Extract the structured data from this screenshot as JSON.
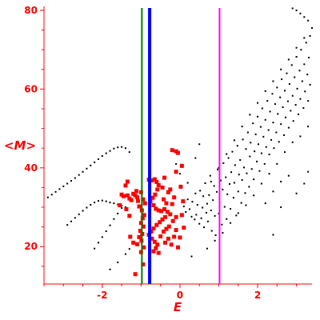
{
  "chart_data": {
    "type": "scatter",
    "xlabel": "E",
    "ylabel": "<M>",
    "xlim": [
      -3.5,
      3.4
    ],
    "ylim": [
      10.5,
      81
    ],
    "xticks": [
      -2,
      0,
      2
    ],
    "yticks": [
      20,
      40,
      60,
      80
    ],
    "vertical_lines": [
      {
        "x": -0.98,
        "color": "#008000"
      },
      {
        "x": -0.78,
        "color": "#0000ff"
      },
      {
        "x": 1.02,
        "color": "#ff00ff"
      }
    ],
    "series": [
      {
        "color": "#000000",
        "marker": "dot",
        "points": [
          [
            -3.4,
            32.5
          ],
          [
            -3.3,
            33.2
          ],
          [
            -3.2,
            33.9
          ],
          [
            -3.1,
            34.6
          ],
          [
            -3.0,
            35.3
          ],
          [
            -2.9,
            36.0
          ],
          [
            -2.8,
            36.7
          ],
          [
            -2.7,
            37.4
          ],
          [
            -2.6,
            38.2
          ],
          [
            -2.5,
            39.0
          ],
          [
            -2.4,
            39.8
          ],
          [
            -2.3,
            40.6
          ],
          [
            -2.2,
            41.4
          ],
          [
            -2.1,
            42.2
          ],
          [
            -2.0,
            43.0
          ],
          [
            -1.9,
            43.7
          ],
          [
            -1.8,
            44.3
          ],
          [
            -1.7,
            44.9
          ],
          [
            -1.6,
            45.2
          ],
          [
            -1.5,
            45.3
          ],
          [
            -1.4,
            45.0
          ],
          [
            -1.3,
            44.0
          ],
          [
            -2.9,
            25.5
          ],
          [
            -2.8,
            26.4
          ],
          [
            -2.7,
            27.3
          ],
          [
            -2.6,
            28.2
          ],
          [
            -2.5,
            29.1
          ],
          [
            -2.4,
            29.9
          ],
          [
            -2.3,
            30.6
          ],
          [
            -2.2,
            31.2
          ],
          [
            -2.1,
            31.6
          ],
          [
            -2.0,
            31.7
          ],
          [
            -1.9,
            31.5
          ],
          [
            -1.8,
            31.2
          ],
          [
            -1.7,
            31.0
          ],
          [
            -1.6,
            30.7
          ],
          [
            -1.5,
            30.4
          ],
          [
            -1.4,
            30.0
          ],
          [
            -2.2,
            19.5
          ],
          [
            -2.1,
            21.0
          ],
          [
            -2.0,
            22.4
          ],
          [
            -1.9,
            23.9
          ],
          [
            -1.8,
            25.4
          ],
          [
            -1.7,
            27.0
          ],
          [
            -1.6,
            28.4
          ],
          [
            -1.5,
            29.8
          ],
          [
            -1.8,
            14.2
          ],
          [
            -1.6,
            16.0
          ],
          [
            -1.4,
            18.1
          ],
          [
            -1.3,
            19.4
          ],
          [
            0.1,
            30.2
          ],
          [
            0.15,
            28.8
          ],
          [
            0.2,
            32.0
          ],
          [
            0.25,
            29.5
          ],
          [
            0.3,
            27.6
          ],
          [
            0.32,
            31.4
          ],
          [
            0.38,
            26.9
          ],
          [
            0.4,
            33.5
          ],
          [
            0.42,
            28.1
          ],
          [
            0.45,
            30.6
          ],
          [
            0.5,
            25.8
          ],
          [
            0.52,
            34.2
          ],
          [
            0.55,
            27.2
          ],
          [
            0.58,
            29.9
          ],
          [
            0.6,
            32.8
          ],
          [
            0.62,
            24.9
          ],
          [
            0.65,
            36.1
          ],
          [
            0.68,
            28.6
          ],
          [
            0.7,
            30.9
          ],
          [
            0.72,
            26.4
          ],
          [
            0.75,
            33.1
          ],
          [
            0.78,
            38.0
          ],
          [
            0.8,
            29.2
          ],
          [
            0.82,
            24.0
          ],
          [
            0.85,
            31.8
          ],
          [
            0.88,
            35.4
          ],
          [
            0.9,
            27.8
          ],
          [
            0.92,
            22.9
          ],
          [
            0.95,
            33.9
          ],
          [
            0.97,
            39.6
          ],
          [
            1.0,
            28.4
          ],
          [
            1.02,
            31.2
          ],
          [
            1.05,
            36.8
          ],
          [
            1.08,
            25.6
          ],
          [
            1.1,
            34.5
          ],
          [
            1.12,
            41.2
          ],
          [
            1.15,
            30.1
          ],
          [
            1.18,
            37.6
          ],
          [
            1.2,
            27.0
          ],
          [
            1.22,
            33.3
          ],
          [
            1.25,
            42.5
          ],
          [
            1.28,
            35.9
          ],
          [
            1.3,
            29.6
          ],
          [
            1.32,
            38.9
          ],
          [
            1.35,
            44.1
          ],
          [
            1.38,
            32.4
          ],
          [
            1.4,
            36.2
          ],
          [
            1.42,
            40.7
          ],
          [
            1.45,
            27.9
          ],
          [
            1.48,
            45.6
          ],
          [
            1.5,
            34.0
          ],
          [
            1.52,
            38.3
          ],
          [
            1.55,
            42.0
          ],
          [
            1.58,
            31.1
          ],
          [
            1.6,
            36.9
          ],
          [
            1.62,
            47.2
          ],
          [
            1.65,
            40.1
          ],
          [
            1.68,
            33.6
          ],
          [
            1.7,
            44.8
          ],
          [
            1.72,
            38.6
          ],
          [
            1.75,
            49.0
          ],
          [
            1.78,
            35.2
          ],
          [
            1.8,
            42.9
          ],
          [
            1.82,
            46.4
          ],
          [
            1.85,
            39.7
          ],
          [
            1.88,
            51.3
          ],
          [
            1.9,
            37.1
          ],
          [
            1.92,
            44.2
          ],
          [
            1.95,
            48.5
          ],
          [
            1.98,
            41.6
          ],
          [
            2.0,
            53.0
          ],
          [
            2.02,
            46.0
          ],
          [
            2.05,
            39.2
          ],
          [
            2.08,
            50.4
          ],
          [
            2.1,
            43.7
          ],
          [
            2.12,
            55.1
          ],
          [
            2.15,
            47.9
          ],
          [
            2.18,
            41.0
          ],
          [
            2.2,
            52.2
          ],
          [
            2.22,
            45.3
          ],
          [
            2.25,
            57.0
          ],
          [
            2.28,
            49.6
          ],
          [
            2.3,
            43.4
          ],
          [
            2.32,
            54.3
          ],
          [
            2.35,
            47.1
          ],
          [
            2.38,
            58.8
          ],
          [
            2.4,
            51.5
          ],
          [
            2.42,
            45.0
          ],
          [
            2.45,
            56.2
          ],
          [
            2.48,
            49.0
          ],
          [
            2.5,
            60.4
          ],
          [
            2.52,
            53.7
          ],
          [
            2.55,
            46.6
          ],
          [
            2.58,
            57.9
          ],
          [
            2.6,
            51.1
          ],
          [
            2.62,
            62.5
          ],
          [
            2.65,
            55.4
          ],
          [
            2.68,
            48.3
          ],
          [
            2.7,
            59.6
          ],
          [
            2.72,
            52.8
          ],
          [
            2.75,
            64.0
          ],
          [
            2.78,
            56.9
          ],
          [
            2.8,
            50.2
          ],
          [
            2.82,
            61.3
          ],
          [
            2.85,
            54.5
          ],
          [
            2.88,
            66.1
          ],
          [
            2.9,
            58.3
          ],
          [
            2.92,
            51.9
          ],
          [
            2.95,
            63.0
          ],
          [
            2.98,
            56.0
          ],
          [
            3.0,
            68.2
          ],
          [
            3.02,
            60.1
          ],
          [
            3.05,
            53.6
          ],
          [
            3.08,
            64.7
          ],
          [
            3.1,
            57.5
          ],
          [
            3.12,
            70.0
          ],
          [
            3.15,
            62.0
          ],
          [
            3.18,
            55.2
          ],
          [
            3.2,
            66.3
          ],
          [
            3.22,
            59.4
          ],
          [
            3.25,
            71.8
          ],
          [
            3.28,
            63.7
          ],
          [
            3.3,
            57.0
          ],
          [
            3.32,
            68.0
          ],
          [
            3.35,
            61.1
          ],
          [
            2.4,
            34.0
          ],
          [
            2.6,
            36.5
          ],
          [
            2.8,
            38.0
          ],
          [
            3.0,
            33.5
          ],
          [
            3.2,
            36.0
          ],
          [
            2.2,
            31.0
          ],
          [
            2.5,
            41.0
          ],
          [
            2.7,
            44.0
          ],
          [
            2.9,
            46.5
          ],
          [
            3.1,
            48.0
          ],
          [
            3.3,
            50.5
          ],
          [
            2.3,
            38.5
          ],
          [
            2.1,
            36.0
          ],
          [
            1.9,
            33.0
          ],
          [
            1.7,
            30.5
          ],
          [
            1.5,
            28.5
          ],
          [
            1.3,
            26.0
          ],
          [
            1.1,
            23.5
          ],
          [
            0.9,
            21.5
          ],
          [
            0.7,
            19.5
          ],
          [
            0.3,
            17.5
          ],
          [
            0.8,
            36.5
          ],
          [
            1.0,
            40.0
          ],
          [
            1.2,
            43.5
          ],
          [
            1.4,
            47.0
          ],
          [
            1.6,
            50.5
          ],
          [
            1.8,
            53.5
          ],
          [
            2.0,
            56.5
          ],
          [
            2.2,
            59.5
          ],
          [
            2.4,
            62.0
          ],
          [
            2.6,
            65.0
          ],
          [
            2.8,
            67.5
          ],
          [
            3.0,
            70.5
          ],
          [
            3.2,
            73.0
          ],
          [
            3.4,
            75.5
          ],
          [
            2.9,
            80.5
          ],
          [
            3.0,
            80.0
          ],
          [
            3.1,
            79.2
          ],
          [
            3.2,
            78.3
          ],
          [
            3.3,
            77.4
          ],
          [
            3.35,
            73.5
          ],
          [
            0.4,
            42.5
          ],
          [
            0.5,
            46.0
          ],
          [
            -0.1,
            41.0
          ],
          [
            0.0,
            38.5
          ],
          [
            0.2,
            36.2
          ],
          [
            2.4,
            23.0
          ],
          [
            2.6,
            30.0
          ],
          [
            3.3,
            39.0
          ]
        ]
      },
      {
        "color": "#ff0000",
        "marker": "square",
        "points": [
          [
            -1.15,
            33.0
          ],
          [
            -1.1,
            32.5
          ],
          [
            -1.2,
            33.4
          ],
          [
            -1.08,
            31.6
          ],
          [
            -1.3,
            32.2
          ],
          [
            -1.35,
            33.0
          ],
          [
            -1.25,
            31.8
          ],
          [
            -1.12,
            34.1
          ],
          [
            -1.0,
            33.8
          ],
          [
            -0.95,
            32.0
          ],
          [
            -0.9,
            31.0
          ],
          [
            -1.05,
            30.2
          ],
          [
            -0.98,
            29.2
          ],
          [
            -0.92,
            28.0
          ],
          [
            -0.96,
            27.2
          ],
          [
            -1.0,
            26.0
          ],
          [
            -0.94,
            25.1
          ],
          [
            -1.02,
            24.0
          ],
          [
            -0.97,
            23.2
          ],
          [
            -1.05,
            22.4
          ],
          [
            -0.99,
            21.5
          ],
          [
            -1.1,
            20.6
          ],
          [
            -0.93,
            19.8
          ],
          [
            -1.0,
            18.6
          ],
          [
            -0.95,
            15.5
          ],
          [
            -1.15,
            13.0
          ],
          [
            -0.8,
            37.0
          ],
          [
            -0.72,
            36.8
          ],
          [
            -0.65,
            37.1
          ],
          [
            -0.6,
            36.4
          ],
          [
            -0.55,
            35.6
          ],
          [
            -0.58,
            34.5
          ],
          [
            -0.64,
            33.2
          ],
          [
            -0.7,
            32.4
          ],
          [
            -0.76,
            31.5
          ],
          [
            -0.68,
            30.5
          ],
          [
            -0.62,
            29.6
          ],
          [
            -0.55,
            29.2
          ],
          [
            -0.48,
            29.0
          ],
          [
            -0.4,
            29.5
          ],
          [
            -0.32,
            28.8
          ],
          [
            -0.25,
            28.2
          ],
          [
            -0.38,
            27.5
          ],
          [
            -0.45,
            26.9
          ],
          [
            -0.52,
            26.2
          ],
          [
            -0.6,
            25.5
          ],
          [
            -0.68,
            24.6
          ],
          [
            -0.74,
            23.8
          ],
          [
            -0.8,
            23.0
          ],
          [
            -0.72,
            22.0
          ],
          [
            -0.65,
            21.2
          ],
          [
            -0.58,
            20.5
          ],
          [
            -0.62,
            19.6
          ],
          [
            -0.68,
            18.8
          ],
          [
            -0.55,
            18.4
          ],
          [
            -0.5,
            22.6
          ],
          [
            -0.42,
            23.8
          ],
          [
            -0.35,
            24.5
          ],
          [
            -0.28,
            25.1
          ],
          [
            -0.3,
            22.0
          ],
          [
            -0.38,
            21.0
          ],
          [
            -0.22,
            20.5
          ],
          [
            -0.15,
            22.5
          ],
          [
            -0.1,
            24.2
          ],
          [
            -0.18,
            26.5
          ],
          [
            -0.1,
            27.5
          ],
          [
            0.05,
            28.0
          ],
          [
            0.1,
            24.8
          ],
          [
            0.0,
            22.3
          ],
          [
            -0.05,
            19.8
          ],
          [
            -0.2,
            30.8
          ],
          [
            -0.15,
            32.5
          ],
          [
            -0.3,
            33.8
          ],
          [
            -0.45,
            35.0
          ],
          [
            -0.42,
            32.0
          ],
          [
            -0.35,
            31.0
          ],
          [
            -1.4,
            35.5
          ],
          [
            -1.45,
            32.8
          ],
          [
            -1.5,
            33.2
          ],
          [
            -1.38,
            29.5
          ],
          [
            -1.55,
            30.5
          ],
          [
            -1.3,
            27.8
          ],
          [
            -1.28,
            22.5
          ],
          [
            -1.2,
            21.0
          ],
          [
            -1.35,
            36.5
          ],
          [
            -0.4,
            37.5
          ],
          [
            -0.25,
            34.5
          ],
          [
            -0.1,
            39.0
          ],
          [
            -0.2,
            44.5
          ],
          [
            -0.1,
            44.2
          ],
          [
            -0.05,
            43.8
          ],
          [
            0.05,
            40.5
          ],
          [
            0.02,
            35.2
          ],
          [
            0.08,
            31.5
          ]
        ]
      }
    ]
  }
}
